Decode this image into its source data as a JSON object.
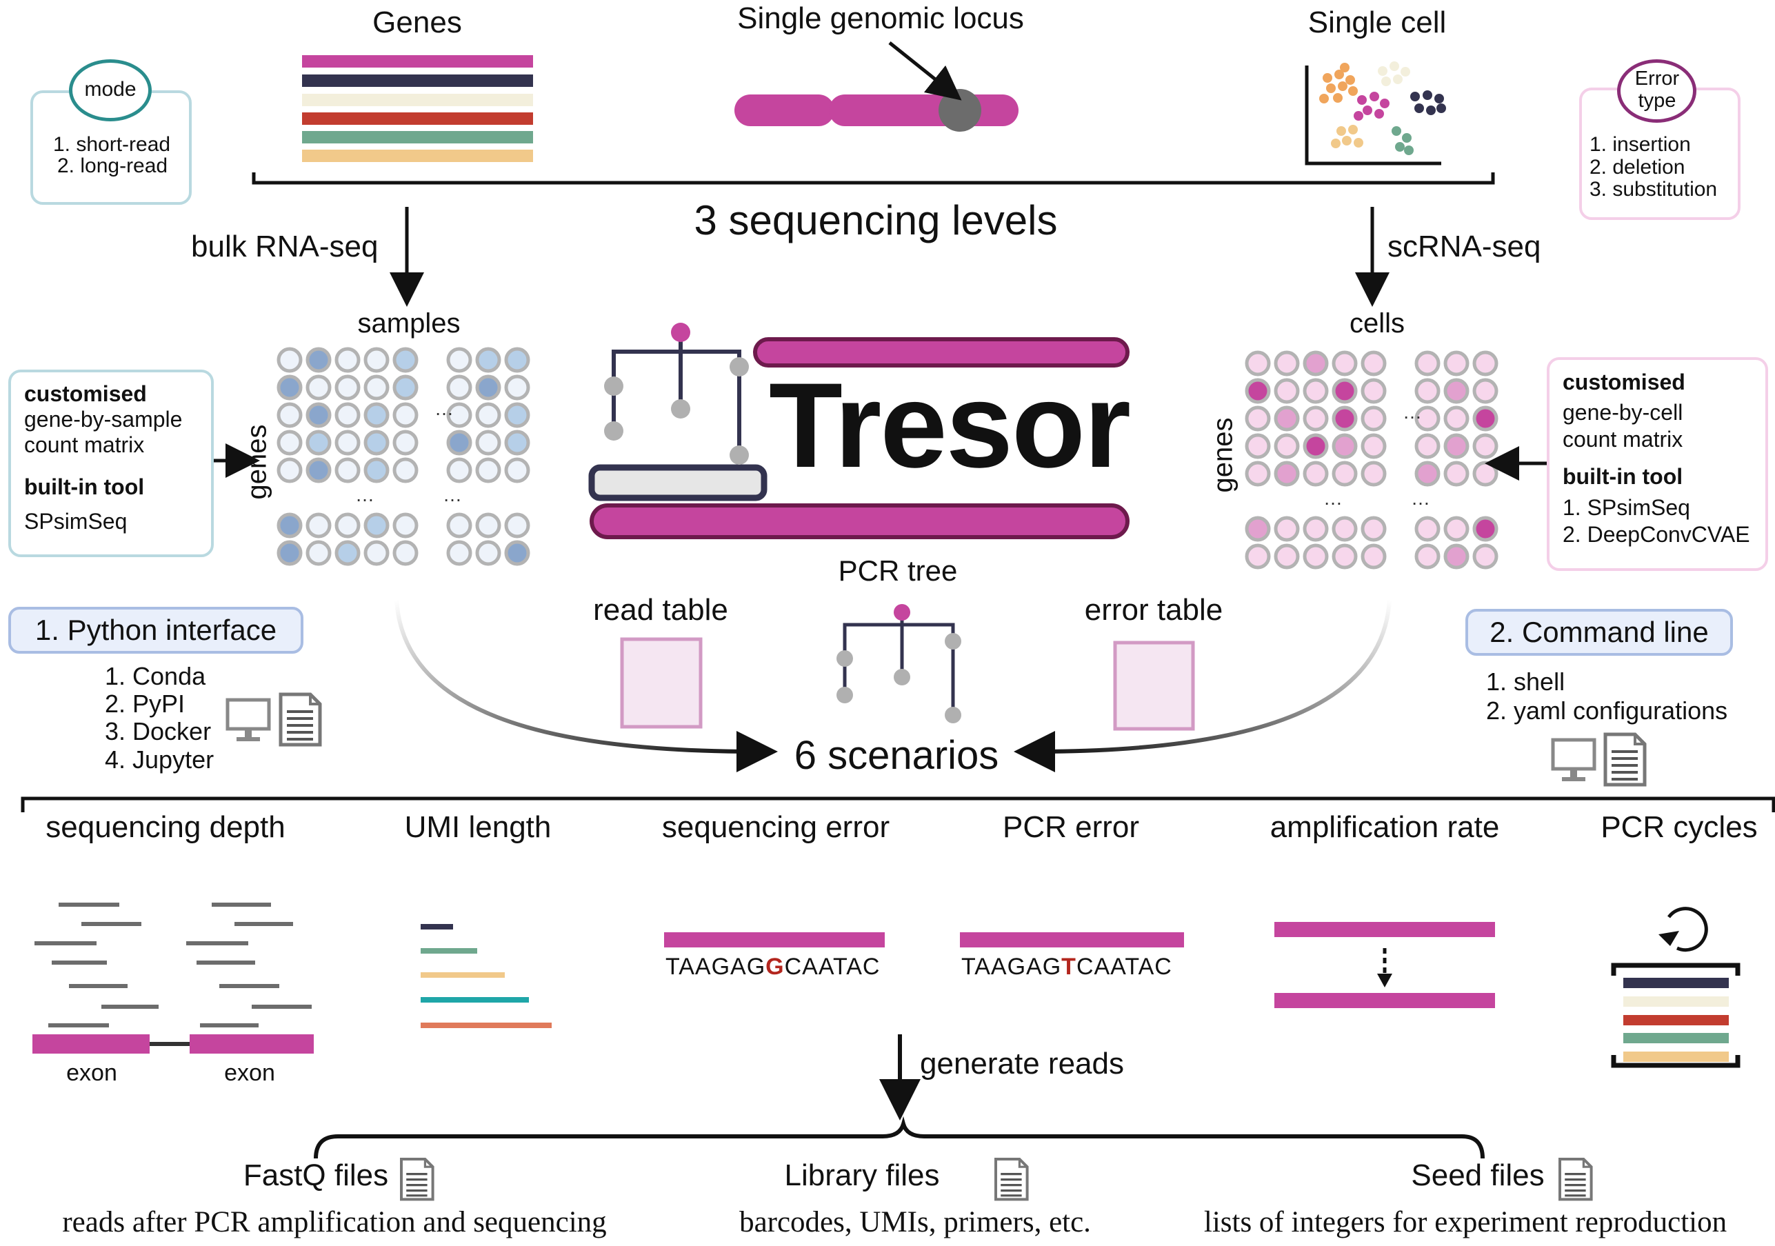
{
  "top": {
    "genes": "Genes",
    "locus": "Single genomic locus",
    "cell": "Single cell",
    "levels": "3 sequencing levels",
    "bulk": "bulk RNA-seq",
    "sc": "scRNA-seq"
  },
  "mode_box": {
    "title": "mode",
    "items": [
      "1. short-read",
      "2. long-read"
    ]
  },
  "error_box": {
    "title_line1": "Error",
    "title_line2": "type",
    "items": [
      "1. insertion",
      "2. deletion",
      "3. substitution"
    ]
  },
  "left_matrix": {
    "col_label": "samples",
    "row_label": "genes",
    "box": {
      "bold1": "customised",
      "line1": "gene-by-sample",
      "line2": "count matrix",
      "bold2": "built-in tool",
      "tool": "SPsimSeq"
    }
  },
  "right_matrix": {
    "col_label": "cells",
    "row_label": "genes",
    "box": {
      "bold1": "customised",
      "line1": "gene-by-cell",
      "line2": "count matrix",
      "bold2": "built-in tool",
      "tools": [
        "1.  SPsimSeq",
        "2.  DeepConvCVAE"
      ]
    }
  },
  "center": {
    "logo": "Tresor",
    "pcr_tree": "PCR tree",
    "read_table": "read table",
    "error_table": "error table",
    "scenarios": "6 scenarios"
  },
  "python": {
    "title": "1. Python interface",
    "items": [
      "1. Conda",
      "2. PyPI",
      "3. Docker",
      "4. Jupyter"
    ]
  },
  "cmdline": {
    "title": "2. Command line",
    "items": [
      "1.  shell",
      "2.  yaml configurations"
    ]
  },
  "scenarios": [
    "sequencing depth",
    "UMI length",
    "sequencing error",
    "PCR error",
    "amplification rate",
    "PCR cycles"
  ],
  "exon": "exon",
  "seq_error": {
    "before": "TAAGAG",
    "mut": "G",
    "after": "CAATAC",
    "mut_color": "#b3261e"
  },
  "pcr_error": {
    "before": "TAAGAG",
    "mut": "T",
    "after": "CAATAC",
    "mut_color": "#b3261e"
  },
  "generate": "generate reads",
  "outputs": [
    {
      "title": "FastQ files",
      "desc": "reads after PCR amplification and sequencing"
    },
    {
      "title": "Library files",
      "desc": "barcodes, UMIs, primers, etc."
    },
    {
      "title": "Seed files",
      "desc": "lists of integers for experiment reproduction"
    }
  ],
  "colors": {
    "magenta": "#c5459e",
    "navy": "#33334f",
    "cream": "#f3efdc",
    "red": "#c23c2f",
    "green": "#6fa88e",
    "tan": "#f1c98a",
    "teal": "#1fa6a8",
    "salmon": "#e07a5a",
    "blue_light": "#b6cfe8",
    "blue_mid": "#8aa6cc",
    "pink_light": "#f7d7ec",
    "pink_mid": "#e2a1cf"
  }
}
